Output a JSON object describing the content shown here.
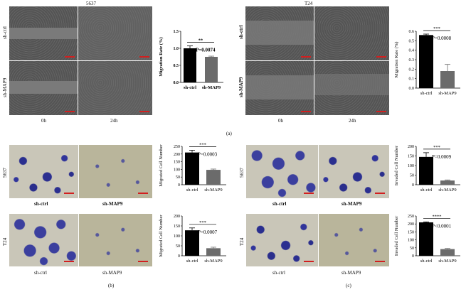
{
  "panel_a": {
    "left_title": "5637",
    "right_title": "T24",
    "row_labels": [
      "sh-ctrl",
      "sh-MAP9"
    ],
    "time_labels": [
      "0h",
      "24h"
    ]
  },
  "panel_bc": {
    "cell_lines": [
      "5637",
      "T24"
    ],
    "cond_labels": [
      "sh-ctrl",
      "sh-MAP9"
    ]
  },
  "sublabels": [
    "(a)",
    "(b)",
    "(c)"
  ],
  "colors": {
    "bar_ctrl": "#000000",
    "bar_map9": "#6b6b6b",
    "scale_bar": "#d21f1f"
  },
  "chart_data": [
    {
      "id": "a_5637",
      "type": "bar",
      "categories": [
        "sh-ctrl",
        "sh-MAP9"
      ],
      "values": [
        1.0,
        0.75
      ],
      "errors": [
        0.07,
        0.02
      ],
      "ylabel": "Migration Rate (%)",
      "ylim": [
        0,
        1.5
      ],
      "yticks": [
        0.0,
        0.5,
        1.0,
        1.5
      ],
      "sig": "**",
      "pvalue": "P=0.0074",
      "bold": true
    },
    {
      "id": "a_t24",
      "type": "bar",
      "categories": [
        "sh-ctrl",
        "sh-MAP9"
      ],
      "values": [
        0.56,
        0.18
      ],
      "errors": [
        0.01,
        0.07
      ],
      "ylabel": "Migration Rate (%)",
      "ylim": [
        0,
        0.6
      ],
      "yticks": [
        0.0,
        0.1,
        0.2,
        0.3,
        0.4,
        0.5,
        0.6
      ],
      "sig": "***",
      "pvalue": "P=0.0008",
      "bold": false
    },
    {
      "id": "b_5637",
      "type": "bar",
      "categories": [
        "sh-ctrl",
        "sh-MAP9"
      ],
      "values": [
        210,
        97
      ],
      "errors": [
        15,
        5
      ],
      "ylabel": "Migrated Cell Number",
      "ylim": [
        0,
        250
      ],
      "yticks": [
        0,
        50,
        100,
        150,
        200,
        250
      ],
      "sig": "***",
      "pvalue": "P=0.0003",
      "bold": false
    },
    {
      "id": "b_t24",
      "type": "bar",
      "categories": [
        "sh-ctrl",
        "sh-MAP9"
      ],
      "values": [
        128,
        38
      ],
      "errors": [
        12,
        5
      ],
      "ylabel": "Migrated Cell Number",
      "ylim": [
        0,
        200
      ],
      "yticks": [
        0,
        50,
        100,
        150,
        200
      ],
      "sig": "***",
      "pvalue": "P=0.0007",
      "bold": false
    },
    {
      "id": "c_5637",
      "type": "bar",
      "categories": [
        "sh-ctrl",
        "sh-MAP9"
      ],
      "values": [
        145,
        22
      ],
      "errors": [
        22,
        3
      ],
      "ylabel": "Invaded Cell Number",
      "ylim": [
        0,
        200
      ],
      "yticks": [
        0,
        50,
        100,
        150,
        200
      ],
      "sig": "***",
      "pvalue": "P=0.0009",
      "bold": false
    },
    {
      "id": "c_t24",
      "type": "bar",
      "categories": [
        "sh-ctrl",
        "sh-MAP9"
      ],
      "values": [
        210,
        42
      ],
      "errors": [
        3,
        4
      ],
      "ylabel": "Invaded Cell Number",
      "ylim": [
        0,
        250
      ],
      "yticks": [
        0,
        50,
        100,
        150,
        200,
        250
      ],
      "sig": "****",
      "pvalue": "P<0.0001",
      "bold": false
    }
  ]
}
